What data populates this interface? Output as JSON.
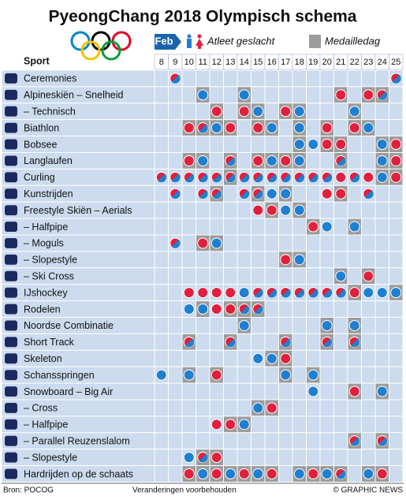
{
  "title": "PyeongChang 2018 Olympisch schema",
  "legend": {
    "month": "Feb",
    "gender": "Atleet geslacht",
    "medal": "Medailledag"
  },
  "colors": {
    "men": "#1f7fd0",
    "women": "#e0203c",
    "medal": "#9c9c9c",
    "cell": "#ccdbee"
  },
  "header": "Sport",
  "days": [
    8,
    9,
    10,
    11,
    12,
    13,
    14,
    15,
    16,
    17,
    18,
    19,
    20,
    21,
    22,
    23,
    24,
    25
  ],
  "rows": [
    {
      "sport": "Ceremonies",
      "days": [
        null,
        "x",
        null,
        null,
        null,
        null,
        null,
        null,
        null,
        null,
        null,
        null,
        null,
        null,
        null,
        null,
        null,
        "x"
      ]
    },
    {
      "sport": "Alpineskiën – Snelheid",
      "days": [
        null,
        null,
        null,
        "M",
        null,
        null,
        "M",
        null,
        null,
        null,
        null,
        null,
        null,
        "W",
        null,
        "W",
        "X",
        null
      ]
    },
    {
      "sport": "– Technisch",
      "days": [
        null,
        null,
        null,
        null,
        "W",
        null,
        "W",
        "M",
        null,
        "W",
        "M",
        null,
        null,
        null,
        "M",
        null,
        null,
        null
      ]
    },
    {
      "sport": "Biathlon",
      "days": [
        null,
        null,
        "W",
        "X",
        "M",
        "W",
        null,
        "W",
        "M",
        null,
        "M",
        null,
        "W",
        null,
        "W",
        "M",
        null,
        null
      ]
    },
    {
      "sport": "Bobsee",
      "days": [
        null,
        null,
        null,
        null,
        null,
        null,
        null,
        null,
        null,
        null,
        "M",
        "m",
        "W",
        "W",
        null,
        null,
        "M",
        "W"
      ]
    },
    {
      "sport": "Langlaufen",
      "days": [
        null,
        null,
        "W",
        "M",
        null,
        "X",
        null,
        "W",
        "M",
        "W",
        "M",
        null,
        null,
        "X",
        null,
        null,
        "M",
        "W"
      ]
    },
    {
      "sport": "Curling",
      "days": [
        "x",
        "x",
        "x",
        "x",
        "x",
        "X",
        "x",
        "x",
        "x",
        "x",
        "x",
        "x",
        "x",
        "w",
        "x",
        "w",
        "M",
        "W"
      ]
    },
    {
      "sport": "Kunstrijden",
      "days": [
        null,
        "x",
        null,
        "x",
        "X",
        null,
        "x",
        "X",
        "m",
        "M",
        null,
        null,
        "w",
        "W",
        null,
        "x",
        null,
        null
      ]
    },
    {
      "sport": "Freestyle Skiën – Aerials",
      "days": [
        null,
        null,
        null,
        null,
        null,
        null,
        null,
        "w",
        "W",
        "m",
        "M",
        null,
        null,
        null,
        null,
        null,
        null,
        null
      ]
    },
    {
      "sport": "– Halfpipe",
      "days": [
        null,
        null,
        null,
        null,
        null,
        null,
        null,
        null,
        null,
        null,
        null,
        "W",
        "m",
        null,
        "M",
        null,
        null,
        null
      ]
    },
    {
      "sport": "– Moguls",
      "days": [
        null,
        "x",
        null,
        "W",
        "M",
        null,
        null,
        null,
        null,
        null,
        null,
        null,
        null,
        null,
        null,
        null,
        null,
        null
      ]
    },
    {
      "sport": "– Slopestyle",
      "days": [
        null,
        null,
        null,
        null,
        null,
        null,
        null,
        null,
        null,
        "W",
        "M",
        null,
        null,
        null,
        null,
        null,
        null,
        null
      ]
    },
    {
      "sport": "– Ski Cross",
      "days": [
        null,
        null,
        null,
        null,
        null,
        null,
        null,
        null,
        null,
        null,
        null,
        null,
        null,
        "M",
        null,
        "W",
        null,
        null
      ]
    },
    {
      "sport": "IJshockey",
      "days": [
        null,
        null,
        "w",
        "w",
        "w",
        "w",
        "m",
        "x",
        "x",
        "x",
        "x",
        "x",
        "x",
        "x",
        "W",
        "m",
        "m",
        "M"
      ]
    },
    {
      "sport": "Rodelen",
      "days": [
        null,
        null,
        "m",
        "M",
        "w",
        "W",
        "X",
        "X",
        null,
        null,
        null,
        null,
        null,
        null,
        null,
        null,
        null,
        null
      ]
    },
    {
      "sport": "Noordse Combinatie",
      "days": [
        null,
        null,
        null,
        null,
        null,
        null,
        "M",
        null,
        null,
        null,
        null,
        null,
        "M",
        null,
        "M",
        null,
        null,
        null
      ]
    },
    {
      "sport": "Short Track",
      "days": [
        null,
        null,
        "X",
        null,
        null,
        "X",
        null,
        null,
        null,
        "X",
        null,
        null,
        "X",
        null,
        "X",
        null,
        null,
        null
      ]
    },
    {
      "sport": "Skeleton",
      "days": [
        null,
        null,
        null,
        null,
        null,
        null,
        null,
        "m",
        "M",
        "W",
        null,
        null,
        null,
        null,
        null,
        null,
        null,
        null
      ]
    },
    {
      "sport": "Schansspringen",
      "days": [
        "m",
        null,
        "M",
        null,
        "W",
        null,
        null,
        null,
        null,
        "M",
        null,
        "M",
        null,
        null,
        null,
        null,
        null,
        null
      ]
    },
    {
      "sport": "Snowboard – Big Air",
      "days": [
        null,
        null,
        null,
        null,
        null,
        null,
        null,
        null,
        null,
        null,
        null,
        "m",
        null,
        null,
        "W",
        null,
        "M",
        null
      ]
    },
    {
      "sport": "– Cross",
      "days": [
        null,
        null,
        null,
        null,
        null,
        null,
        null,
        "M",
        "W",
        null,
        null,
        null,
        null,
        null,
        null,
        null,
        null,
        null
      ]
    },
    {
      "sport": "– Halfpipe",
      "days": [
        null,
        null,
        null,
        null,
        "w",
        "W",
        "M",
        null,
        null,
        null,
        null,
        null,
        null,
        null,
        null,
        null,
        null,
        null
      ]
    },
    {
      "sport": "– Parallel Reuzenslalom",
      "days": [
        null,
        null,
        null,
        null,
        null,
        null,
        null,
        null,
        null,
        null,
        null,
        null,
        null,
        null,
        "X",
        null,
        "X",
        null
      ]
    },
    {
      "sport": "– Slopestyle",
      "days": [
        null,
        null,
        "m",
        "X",
        "W",
        null,
        null,
        null,
        null,
        null,
        null,
        null,
        null,
        null,
        null,
        null,
        null,
        null
      ]
    },
    {
      "sport": "Hardrijden op de schaats",
      "days": [
        null,
        null,
        "W",
        "M",
        "W",
        "M",
        "W",
        "M",
        "W",
        null,
        "M",
        "W",
        "M",
        "X",
        null,
        "M",
        "W",
        null
      ]
    }
  ],
  "footer": {
    "source": "Bron: POCOG",
    "note": "Veranderingen voorbehouden",
    "credit": "© GRAPHIC NEWS"
  }
}
